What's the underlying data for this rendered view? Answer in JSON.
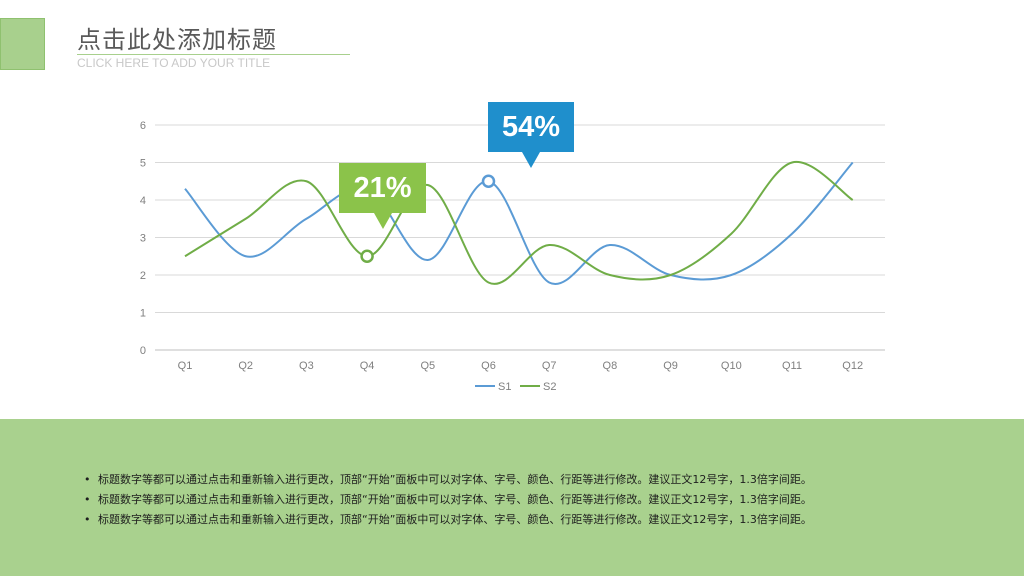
{
  "slide": {
    "title": "点击此处添加标题",
    "subtitle": "CLICK HERE TO ADD YOUR TITLE"
  },
  "callouts": {
    "s2_label": "21%",
    "s1_label": "54%"
  },
  "notes": [
    "标题数字等都可以通过点击和重新输入进行更改，顶部“开始”面板中可以对字体、字号、颜色、行距等进行修改。建议正文12号字，1.3倍字间距。",
    "标题数字等都可以通过点击和重新输入进行更改，顶部“开始”面板中可以对字体、字号、颜色、行距等进行修改。建议正文12号字，1.3倍字间距。",
    "标题数字等都可以通过点击和重新输入进行更改，顶部“开始”面板中可以对字体、字号、颜色、行距等进行修改。建议正文12号字，1.3倍字间距。"
  ],
  "colors": {
    "accent": "#a8d08d",
    "s1": "#5b9bd5",
    "s2": "#70ad47",
    "callout_green": "#8bc34a",
    "callout_blue": "#1f8fcc"
  },
  "chart_data": {
    "type": "line",
    "smooth": true,
    "categories": [
      "Q1",
      "Q2",
      "Q3",
      "Q4",
      "Q5",
      "Q6",
      "Q7",
      "Q8",
      "Q9",
      "Q10",
      "Q11",
      "Q12"
    ],
    "series": [
      {
        "name": "S1",
        "values": [
          4.3,
          2.5,
          3.5,
          4.3,
          2.4,
          4.5,
          1.8,
          2.8,
          2.0,
          2.0,
          3.1,
          5.0
        ]
      },
      {
        "name": "S2",
        "values": [
          2.5,
          3.5,
          4.5,
          2.5,
          4.4,
          1.8,
          2.8,
          2.0,
          2.0,
          3.1,
          5.0,
          4.0
        ]
      }
    ],
    "highlights": [
      {
        "series": "S2",
        "category": "Q4",
        "label": "21%"
      },
      {
        "series": "S1",
        "category": "Q6",
        "label": "54%"
      }
    ],
    "ylim": [
      0,
      6
    ],
    "yticks": [
      0,
      1,
      2,
      3,
      4,
      5,
      6
    ],
    "grid": true,
    "legend": "bottom"
  }
}
